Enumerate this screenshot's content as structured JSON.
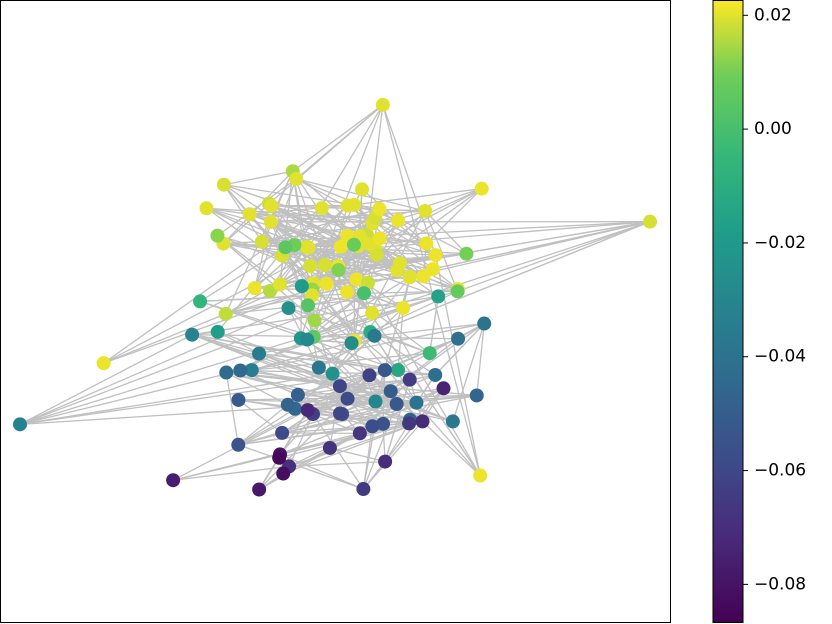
{
  "chart_data": {
    "type": "network",
    "colormap": "viridis",
    "edge_color": "#c0c0c0",
    "nodes": [
      0.021,
      0.021,
      0.02,
      0.02,
      0.021,
      0.019,
      0.02,
      0.021,
      0.02,
      0.018,
      0.021,
      0.02,
      0.019,
      0.021,
      0.02,
      0.02,
      0.021,
      0.018,
      0.02,
      0.019,
      0.021,
      0.02,
      0.021,
      0.02,
      0.017,
      0.021,
      0.02,
      0.019,
      0.021,
      0.02,
      0.016,
      0.021,
      0.02,
      0.02,
      0.019,
      0.021,
      0.018,
      0.02,
      0.021,
      0.02,
      0.015,
      0.021,
      0.02,
      0.019,
      0.021,
      0.02,
      0.014,
      0.02,
      0.021,
      0.02,
      0.013,
      0.021,
      0.02,
      0.019,
      0.012,
      0.02,
      0.021,
      0.011,
      0.02,
      0.01,
      0.021,
      0.02,
      0.009,
      0.019,
      0.008,
      0.021,
      0.02,
      0.007,
      0.02,
      0.006,
      0.005,
      0.003,
      0.0,
      -0.003,
      -0.006,
      -0.01,
      -0.013,
      -0.016,
      -0.018,
      -0.02,
      -0.022,
      -0.024,
      -0.025,
      -0.027,
      -0.028,
      -0.03,
      -0.031,
      -0.032,
      -0.034,
      -0.035,
      -0.036,
      -0.037,
      -0.038,
      -0.039,
      -0.04,
      -0.041,
      -0.042,
      -0.043,
      -0.044,
      -0.045,
      -0.046,
      -0.047,
      -0.048,
      -0.049,
      -0.05,
      -0.051,
      -0.052,
      -0.053,
      -0.054,
      -0.055,
      -0.056,
      -0.057,
      -0.058,
      -0.059,
      -0.06,
      -0.061,
      -0.062,
      -0.063,
      -0.064,
      -0.065,
      -0.066,
      -0.067,
      -0.068,
      -0.069,
      -0.07,
      -0.071,
      -0.072,
      -0.074,
      -0.076,
      -0.078,
      -0.08,
      -0.082,
      -0.084
    ],
    "colorbar": {
      "clim": [
        -0.0867,
        0.0226
      ],
      "ticks": [
        0.02,
        {
          "value": 0,
          "label": "0.00"
        },
        {
          "value": -0.02,
          "label": "−0.02"
        },
        {
          "value": -0.04,
          "label": "−0.04"
        },
        {
          "value": -0.06,
          "label": "−0.06"
        },
        {
          "value": -0.08,
          "label": "−0.08"
        }
      ]
    }
  }
}
